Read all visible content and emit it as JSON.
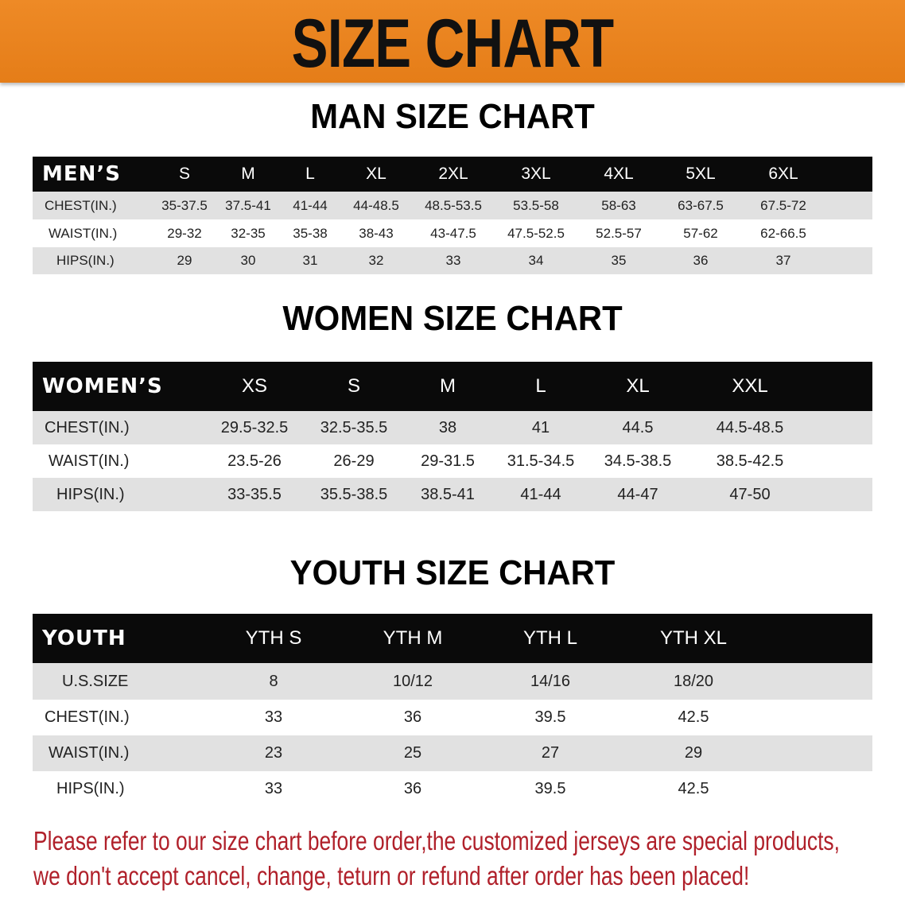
{
  "banner_title": "SIZE CHART",
  "men": {
    "title": "MAN SIZE CHART",
    "header": "MEN’S",
    "sizes": [
      "S",
      "M",
      "L",
      "XL",
      "2XL",
      "3XL",
      "4XL",
      "5XL",
      "6XL"
    ],
    "rows": [
      {
        "label": "CHEST(IN.)",
        "values": [
          "35-37.5",
          "37.5-41",
          "41-44",
          "44-48.5",
          "48.5-53.5",
          "53.5-58",
          "58-63",
          "63-67.5",
          "67.5-72"
        ]
      },
      {
        "label": "WAIST(IN.)",
        "values": [
          "29-32",
          "32-35",
          "35-38",
          "38-43",
          "43-47.5",
          "47.5-52.5",
          "52.5-57",
          "57-62",
          "62-66.5"
        ]
      },
      {
        "label": "HIPS(IN.)",
        "values": [
          "29",
          "30",
          "31",
          "32",
          "33",
          "34",
          "35",
          "36",
          "37"
        ]
      }
    ]
  },
  "women": {
    "title": "WOMEN SIZE CHART",
    "header": "WOMEN’S",
    "sizes": [
      "XS",
      "S",
      "M",
      "L",
      "XL",
      "XXL"
    ],
    "rows": [
      {
        "label": "CHEST(IN.)",
        "values": [
          "29.5-32.5",
          "32.5-35.5",
          "38",
          "41",
          "44.5",
          "44.5-48.5"
        ]
      },
      {
        "label": "WAIST(IN.)",
        "values": [
          "23.5-26",
          "26-29",
          "29-31.5",
          "31.5-34.5",
          "34.5-38.5",
          "38.5-42.5"
        ]
      },
      {
        "label": "HIPS(IN.)",
        "values": [
          "33-35.5",
          "35.5-38.5",
          "38.5-41",
          "41-44",
          "44-47",
          "47-50"
        ]
      }
    ]
  },
  "youth": {
    "title": "YOUTH SIZE CHART",
    "header": "YOUTH",
    "sizes": [
      "YTH S",
      "YTH M",
      "YTH L",
      "YTH XL"
    ],
    "rows": [
      {
        "label": "U.S.SIZE",
        "values": [
          "8",
          "10/12",
          "14/16",
          "18/20"
        ]
      },
      {
        "label": "CHEST(IN.)",
        "values": [
          "33",
          "36",
          "39.5",
          "42.5"
        ]
      },
      {
        "label": "WAIST(IN.)",
        "values": [
          "23",
          "25",
          "27",
          "29"
        ]
      },
      {
        "label": "HIPS(IN.)",
        "values": [
          "33",
          "36",
          "39.5",
          "42.5"
        ]
      }
    ]
  },
  "notice": {
    "line1": "Please refer to our size chart before order,the customized jerseys are special products,",
    "line2": "we don't accept cancel, change, teturn or refund after order has been placed!"
  },
  "colors": {
    "banner": "#e88020",
    "header_row": "#0a0a0a",
    "stripe": "#e1e1e1",
    "notice": "#b0202a"
  }
}
